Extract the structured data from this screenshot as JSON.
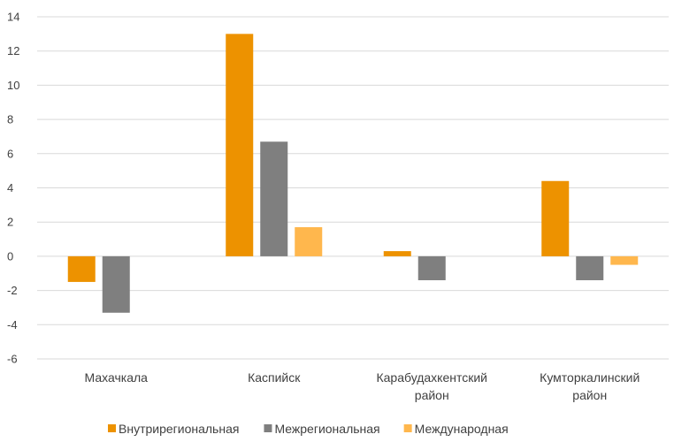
{
  "chart_data": {
    "type": "bar",
    "categories": [
      [
        "Махачкала"
      ],
      [
        "Каспийск"
      ],
      [
        "Карабудахкентский",
        "район"
      ],
      [
        "Кумторкалинский",
        "район"
      ]
    ],
    "series": [
      {
        "name": "Внутрирегиональная",
        "color": "#ED9200",
        "values": [
          -1.5,
          13.0,
          0.3,
          4.4
        ]
      },
      {
        "name": "Межрегиональная",
        "color": "#7F7F7F",
        "values": [
          -3.3,
          6.7,
          -1.4,
          -1.4
        ]
      },
      {
        "name": "Международная",
        "color": "#FFB74D",
        "values": [
          null,
          1.7,
          null,
          -0.5
        ]
      }
    ],
    "ylim": [
      -6,
      14
    ],
    "yticks": [
      -6,
      -4,
      -2,
      0,
      2,
      4,
      6,
      8,
      10,
      12,
      14
    ],
    "grid": true,
    "legend_position": "bottom",
    "title": "",
    "xlabel": "",
    "ylabel": ""
  }
}
